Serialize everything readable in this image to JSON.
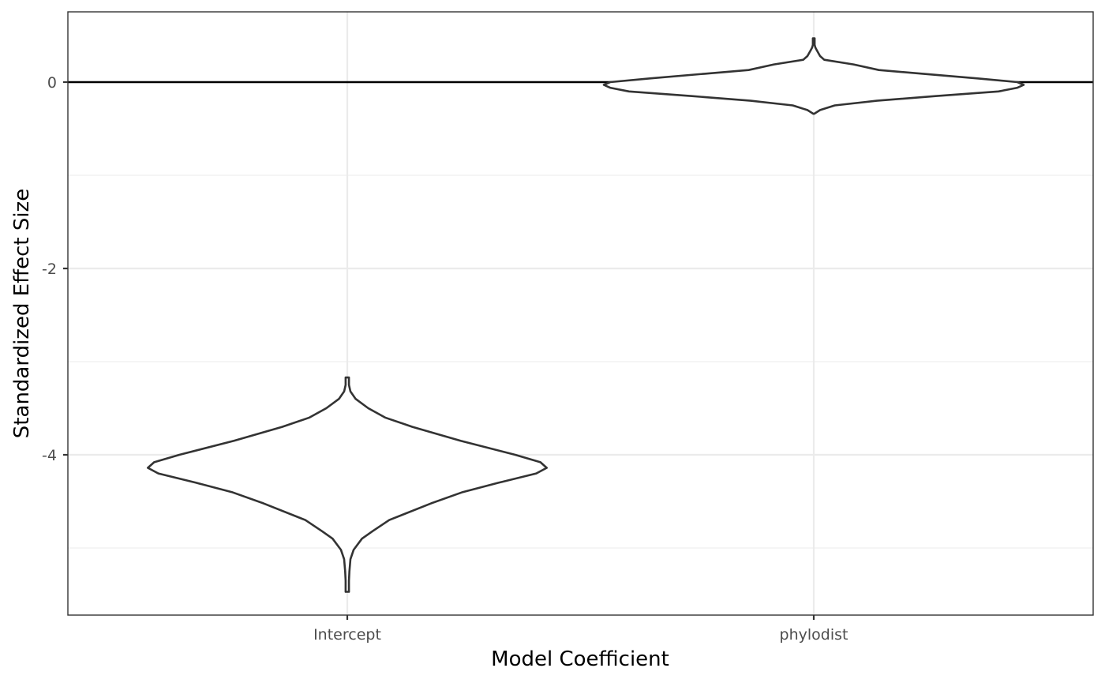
{
  "chart_data": {
    "type": "violin",
    "xlabel": "Model Coefficient",
    "ylabel": "Standardized Effect Size",
    "categories": [
      "Intercept",
      "phylodist"
    ],
    "ylim": [
      -5.75,
      0.75
    ],
    "yticks": [
      0,
      -2,
      -4
    ],
    "ytick_labels": [
      "0",
      "-2",
      "-4"
    ],
    "y_minor_ticks": [
      -1,
      -3,
      -5
    ],
    "hline": 0,
    "grid": true,
    "violins": [
      {
        "category": "Intercept",
        "min": -5.47,
        "max": -3.17,
        "profile": [
          [
            -5.47,
            0.008
          ],
          [
            -5.35,
            0.008
          ],
          [
            -5.25,
            0.01
          ],
          [
            -5.12,
            0.015
          ],
          [
            -5.02,
            0.03
          ],
          [
            -4.9,
            0.07
          ],
          [
            -4.82,
            0.12
          ],
          [
            -4.7,
            0.2
          ],
          [
            -4.52,
            0.4
          ],
          [
            -4.4,
            0.55
          ],
          [
            -4.3,
            0.72
          ],
          [
            -4.2,
            0.9
          ],
          [
            -4.14,
            0.95
          ],
          [
            -4.08,
            0.92
          ],
          [
            -4.0,
            0.8
          ],
          [
            -3.85,
            0.54
          ],
          [
            -3.7,
            0.31
          ],
          [
            -3.6,
            0.18
          ],
          [
            -3.5,
            0.1
          ],
          [
            -3.4,
            0.04
          ],
          [
            -3.32,
            0.015
          ],
          [
            -3.25,
            0.008
          ],
          [
            -3.17,
            0.008
          ]
        ]
      },
      {
        "category": "phylodist",
        "min": -0.34,
        "max": 0.47,
        "profile": [
          [
            -0.34,
            0.002
          ],
          [
            -0.3,
            0.03
          ],
          [
            -0.25,
            0.1
          ],
          [
            -0.2,
            0.3
          ],
          [
            -0.15,
            0.58
          ],
          [
            -0.1,
            0.88
          ],
          [
            -0.06,
            0.97
          ],
          [
            -0.03,
            1.0
          ],
          [
            0.0,
            0.97
          ],
          [
            0.04,
            0.78
          ],
          [
            0.09,
            0.52
          ],
          [
            0.13,
            0.31
          ],
          [
            0.19,
            0.19
          ],
          [
            0.24,
            0.05
          ],
          [
            0.28,
            0.03
          ],
          [
            0.34,
            0.015
          ],
          [
            0.37,
            0.008
          ],
          [
            0.4,
            0.004
          ],
          [
            0.44,
            0.004
          ],
          [
            0.47,
            0.004
          ]
        ]
      }
    ]
  }
}
